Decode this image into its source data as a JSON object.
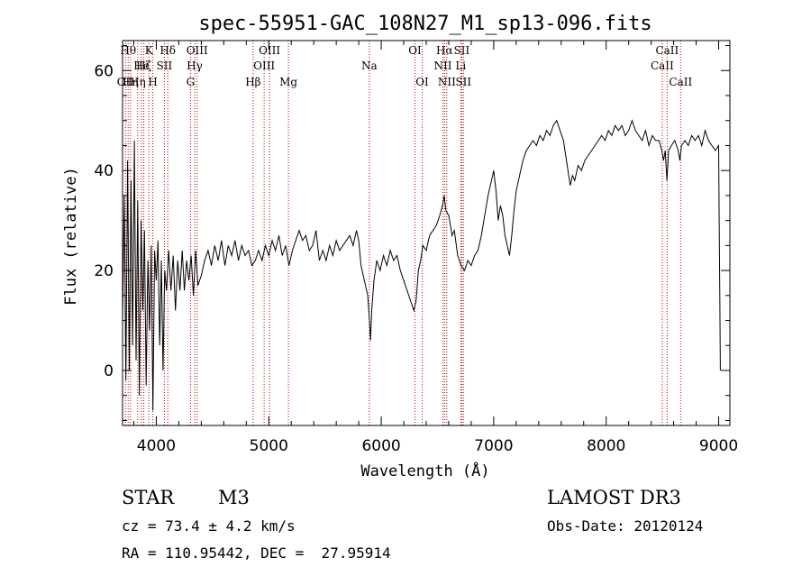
{
  "chart_data": {
    "type": "line",
    "title": "spec-55951-GAC_108N27_M1_sp13-096.fits",
    "xlabel": "Wavelength (Å)",
    "ylabel": "Flux (relative)",
    "xlim": [
      3700,
      9100
    ],
    "ylim": [
      -11,
      66
    ],
    "x_ticks": [
      4000,
      5000,
      6000,
      7000,
      8000,
      9000
    ],
    "y_ticks": [
      0,
      20,
      40,
      60
    ],
    "grid": false,
    "series": [
      {
        "color": "#000000",
        "points": [
          [
            3700,
            10
          ],
          [
            3715,
            35
          ],
          [
            3730,
            -2
          ],
          [
            3745,
            42
          ],
          [
            3760,
            0
          ],
          [
            3775,
            38
          ],
          [
            3790,
            5
          ],
          [
            3805,
            46
          ],
          [
            3820,
            2
          ],
          [
            3835,
            34
          ],
          [
            3850,
            -5
          ],
          [
            3865,
            30
          ],
          [
            3880,
            12
          ],
          [
            3895,
            28
          ],
          [
            3910,
            -3
          ],
          [
            3925,
            22
          ],
          [
            3940,
            8
          ],
          [
            3955,
            25
          ],
          [
            3970,
            -8
          ],
          [
            3985,
            24
          ],
          [
            4000,
            18
          ],
          [
            4015,
            26
          ],
          [
            4030,
            5
          ],
          [
            4045,
            22
          ],
          [
            4060,
            0
          ],
          [
            4075,
            20
          ],
          [
            4090,
            16
          ],
          [
            4110,
            24
          ],
          [
            4130,
            16
          ],
          [
            4150,
            23
          ],
          [
            4170,
            12
          ],
          [
            4190,
            22
          ],
          [
            4210,
            16
          ],
          [
            4230,
            24
          ],
          [
            4250,
            16
          ],
          [
            4270,
            22
          ],
          [
            4290,
            18
          ],
          [
            4310,
            23
          ],
          [
            4330,
            15
          ],
          [
            4350,
            24
          ],
          [
            4370,
            17
          ],
          [
            4400,
            19
          ],
          [
            4430,
            22
          ],
          [
            4460,
            24
          ],
          [
            4490,
            21
          ],
          [
            4520,
            25
          ],
          [
            4550,
            22
          ],
          [
            4580,
            26
          ],
          [
            4610,
            21
          ],
          [
            4640,
            25
          ],
          [
            4670,
            23
          ],
          [
            4700,
            26
          ],
          [
            4730,
            22
          ],
          [
            4760,
            25
          ],
          [
            4790,
            23
          ],
          [
            4820,
            24
          ],
          [
            4850,
            21
          ],
          [
            4880,
            22
          ],
          [
            4910,
            24
          ],
          [
            4940,
            22
          ],
          [
            4970,
            25
          ],
          [
            5000,
            23
          ],
          [
            5030,
            26
          ],
          [
            5060,
            24
          ],
          [
            5090,
            27
          ],
          [
            5120,
            23
          ],
          [
            5150,
            25
          ],
          [
            5180,
            21
          ],
          [
            5210,
            24
          ],
          [
            5240,
            26
          ],
          [
            5270,
            28
          ],
          [
            5300,
            26
          ],
          [
            5330,
            27
          ],
          [
            5360,
            24
          ],
          [
            5390,
            25
          ],
          [
            5420,
            28
          ],
          [
            5450,
            22
          ],
          [
            5480,
            24
          ],
          [
            5510,
            22
          ],
          [
            5540,
            25
          ],
          [
            5570,
            23
          ],
          [
            5600,
            26
          ],
          [
            5630,
            24
          ],
          [
            5660,
            25
          ],
          [
            5690,
            26
          ],
          [
            5720,
            27
          ],
          [
            5750,
            25
          ],
          [
            5780,
            28
          ],
          [
            5800,
            26
          ],
          [
            5820,
            21
          ],
          [
            5840,
            19
          ],
          [
            5860,
            17
          ],
          [
            5880,
            15
          ],
          [
            5895,
            10
          ],
          [
            5905,
            6
          ],
          [
            5915,
            12
          ],
          [
            5935,
            18
          ],
          [
            5960,
            22
          ],
          [
            5990,
            20
          ],
          [
            6020,
            23
          ],
          [
            6050,
            21
          ],
          [
            6080,
            24
          ],
          [
            6110,
            22
          ],
          [
            6140,
            23
          ],
          [
            6170,
            20
          ],
          [
            6200,
            18
          ],
          [
            6230,
            16
          ],
          [
            6260,
            14
          ],
          [
            6290,
            12
          ],
          [
            6310,
            14
          ],
          [
            6330,
            20
          ],
          [
            6350,
            22
          ],
          [
            6370,
            25
          ],
          [
            6400,
            24
          ],
          [
            6430,
            27
          ],
          [
            6460,
            28
          ],
          [
            6490,
            29
          ],
          [
            6520,
            31
          ],
          [
            6545,
            33
          ],
          [
            6560,
            35
          ],
          [
            6575,
            32
          ],
          [
            6600,
            31
          ],
          [
            6630,
            27
          ],
          [
            6650,
            28
          ],
          [
            6680,
            23
          ],
          [
            6710,
            21
          ],
          [
            6740,
            20
          ],
          [
            6770,
            22
          ],
          [
            6800,
            21
          ],
          [
            6830,
            23
          ],
          [
            6860,
            24
          ],
          [
            6890,
            27
          ],
          [
            6920,
            31
          ],
          [
            6950,
            35
          ],
          [
            6980,
            38
          ],
          [
            7000,
            40
          ],
          [
            7020,
            36
          ],
          [
            7040,
            30
          ],
          [
            7060,
            33
          ],
          [
            7080,
            31
          ],
          [
            7100,
            27
          ],
          [
            7120,
            25
          ],
          [
            7140,
            23
          ],
          [
            7160,
            27
          ],
          [
            7180,
            32
          ],
          [
            7200,
            36
          ],
          [
            7230,
            39
          ],
          [
            7260,
            42
          ],
          [
            7290,
            44
          ],
          [
            7320,
            45
          ],
          [
            7350,
            46
          ],
          [
            7380,
            45
          ],
          [
            7410,
            47
          ],
          [
            7440,
            46
          ],
          [
            7470,
            48
          ],
          [
            7500,
            47
          ],
          [
            7530,
            49
          ],
          [
            7560,
            50
          ],
          [
            7590,
            48
          ],
          [
            7620,
            46
          ],
          [
            7640,
            43
          ],
          [
            7660,
            40
          ],
          [
            7680,
            37
          ],
          [
            7700,
            39
          ],
          [
            7720,
            38
          ],
          [
            7750,
            41
          ],
          [
            7780,
            40
          ],
          [
            7810,
            42
          ],
          [
            7840,
            43
          ],
          [
            7870,
            44
          ],
          [
            7900,
            45
          ],
          [
            7930,
            46
          ],
          [
            7960,
            47
          ],
          [
            7990,
            46
          ],
          [
            8020,
            48
          ],
          [
            8050,
            47
          ],
          [
            8080,
            49
          ],
          [
            8110,
            48
          ],
          [
            8140,
            49
          ],
          [
            8170,
            47
          ],
          [
            8200,
            48
          ],
          [
            8230,
            50
          ],
          [
            8260,
            48
          ],
          [
            8290,
            47
          ],
          [
            8320,
            46
          ],
          [
            8350,
            48
          ],
          [
            8380,
            45
          ],
          [
            8410,
            47
          ],
          [
            8440,
            46
          ],
          [
            8470,
            46
          ],
          [
            8495,
            44
          ],
          [
            8510,
            42
          ],
          [
            8525,
            44
          ],
          [
            8540,
            38
          ],
          [
            8555,
            44
          ],
          [
            8580,
            45
          ],
          [
            8610,
            46
          ],
          [
            8640,
            44
          ],
          [
            8655,
            42
          ],
          [
            8670,
            45
          ],
          [
            8700,
            46
          ],
          [
            8730,
            45
          ],
          [
            8760,
            47
          ],
          [
            8790,
            46
          ],
          [
            8820,
            47
          ],
          [
            8850,
            45
          ],
          [
            8880,
            48
          ],
          [
            8910,
            46
          ],
          [
            8940,
            45
          ],
          [
            8970,
            44
          ],
          [
            9000,
            45
          ],
          [
            9005,
            30
          ],
          [
            9010,
            15
          ],
          [
            9015,
            0
          ]
        ]
      }
    ],
    "lines": [
      {
        "wave": 3727,
        "label": "OII",
        "row": 2
      },
      {
        "wave": 3750,
        "label": "Hθ",
        "row": 0
      },
      {
        "wave": 3771,
        "label": "Hη",
        "row": 2
      },
      {
        "wave": 3835,
        "label": "Hη",
        "row": 2
      },
      {
        "wave": 3869,
        "label": "He",
        "row": 1
      },
      {
        "wave": 3889,
        "label": "Hζ",
        "row": 1
      },
      {
        "wave": 3934,
        "label": "K",
        "row": 0
      },
      {
        "wave": 3969,
        "label": "H",
        "row": 2
      },
      {
        "wave": 4072,
        "label": "SII",
        "row": 1
      },
      {
        "wave": 4102,
        "label": "Hδ",
        "row": 0
      },
      {
        "wave": 4304,
        "label": "G",
        "row": 2
      },
      {
        "wave": 4341,
        "label": "Hγ",
        "row": 1
      },
      {
        "wave": 4363,
        "label": "OIII",
        "row": 0
      },
      {
        "wave": 4861,
        "label": "Hβ",
        "row": 2
      },
      {
        "wave": 4959,
        "label": "OIII",
        "row": 1
      },
      {
        "wave": 5007,
        "label": "OIII",
        "row": 0
      },
      {
        "wave": 5175,
        "label": "Mg",
        "row": 2
      },
      {
        "wave": 5894,
        "label": "Na",
        "row": 1
      },
      {
        "wave": 6300,
        "label": "OI",
        "row": 0
      },
      {
        "wave": 6364,
        "label": "OI",
        "row": 2
      },
      {
        "wave": 6548,
        "label": "NII",
        "row": 1
      },
      {
        "wave": 6563,
        "label": "Hα",
        "row": 0
      },
      {
        "wave": 6583,
        "label": "NII",
        "row": 2
      },
      {
        "wave": 6707,
        "label": "Li",
        "row": 1
      },
      {
        "wave": 6716,
        "label": "SII",
        "row": 0
      },
      {
        "wave": 6731,
        "label": "SII",
        "row": 2
      },
      {
        "wave": 8498,
        "label": "CaII",
        "row": 1
      },
      {
        "wave": 8542,
        "label": "CaII",
        "row": 0
      },
      {
        "wave": 8662,
        "label": "CaII",
        "row": 2
      }
    ]
  },
  "info": {
    "class": "STAR",
    "subclass": "M3",
    "survey": "LAMOST DR3",
    "cz": "cz = 73.4 ± 4.2 km/s",
    "obsdate": "Obs-Date: 20120124",
    "coords": "RA = 110.95442, DEC =  27.95914"
  }
}
